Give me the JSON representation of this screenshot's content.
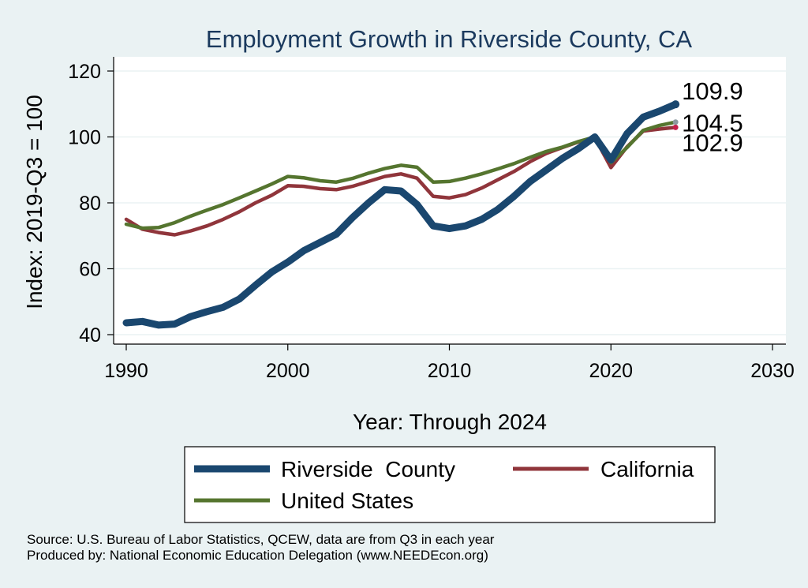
{
  "chart_data": {
    "type": "line",
    "title": "Employment Growth in Riverside County, CA",
    "xlabel": "Year: Through 2024",
    "ylabel": "Index: 2019-Q3 = 100",
    "xlim": [
      1990,
      2030
    ],
    "ylim": [
      40,
      120
    ],
    "xticks": [
      1990,
      2000,
      2010,
      2020,
      2030
    ],
    "yticks": [
      40,
      60,
      80,
      100,
      120
    ],
    "grid": true,
    "legend": "bottom",
    "x": [
      1990,
      1991,
      1992,
      1993,
      1994,
      1995,
      1996,
      1997,
      1998,
      1999,
      2000,
      2001,
      2002,
      2003,
      2004,
      2005,
      2006,
      2007,
      2008,
      2009,
      2010,
      2011,
      2012,
      2013,
      2014,
      2015,
      2016,
      2017,
      2018,
      2019,
      2020,
      2021,
      2022,
      2023,
      2024
    ],
    "series": [
      {
        "name": "Riverside  County",
        "color": "#1a476f",
        "end_label": "109.9",
        "values": [
          43.6,
          44.0,
          42.9,
          43.2,
          45.5,
          47.0,
          48.3,
          50.8,
          55.0,
          59.0,
          62.0,
          65.5,
          68.0,
          70.5,
          75.5,
          80.0,
          84.0,
          83.6,
          79.5,
          73.0,
          72.2,
          73.0,
          75.0,
          78.0,
          82.0,
          86.5,
          90.0,
          93.5,
          96.5,
          100.0,
          93.0,
          101.0,
          106.0,
          107.8,
          109.9
        ]
      },
      {
        "name": "California",
        "color": "#90353b",
        "end_label": "102.9",
        "values": [
          75.0,
          72.0,
          71.0,
          70.3,
          71.5,
          73.0,
          75.0,
          77.3,
          80.0,
          82.3,
          85.2,
          85.0,
          84.3,
          84.0,
          85.0,
          86.5,
          88.0,
          88.8,
          87.5,
          82.0,
          81.5,
          82.5,
          84.5,
          87.0,
          89.5,
          92.5,
          95.0,
          96.8,
          98.5,
          99.8,
          90.7,
          97.0,
          101.8,
          102.4,
          102.9
        ]
      },
      {
        "name": "United States",
        "color": "#55752f",
        "end_label": "104.5",
        "values": [
          73.5,
          72.3,
          72.5,
          74.0,
          76.0,
          77.8,
          79.5,
          81.5,
          83.6,
          85.7,
          88.0,
          87.6,
          86.7,
          86.3,
          87.4,
          89.0,
          90.4,
          91.4,
          90.8,
          86.3,
          86.5,
          87.5,
          88.8,
          90.3,
          91.9,
          93.8,
          95.6,
          96.9,
          98.6,
          100.0,
          92.2,
          96.8,
          102.0,
          103.5,
          104.5
        ]
      }
    ],
    "source_lines": [
      "Source: U.S. Bureau of Labor Statistics, QCEW, data are from Q3 in each year",
      "Produced by: National Economic Education Delegation (www.NEEDEcon.org)"
    ]
  }
}
